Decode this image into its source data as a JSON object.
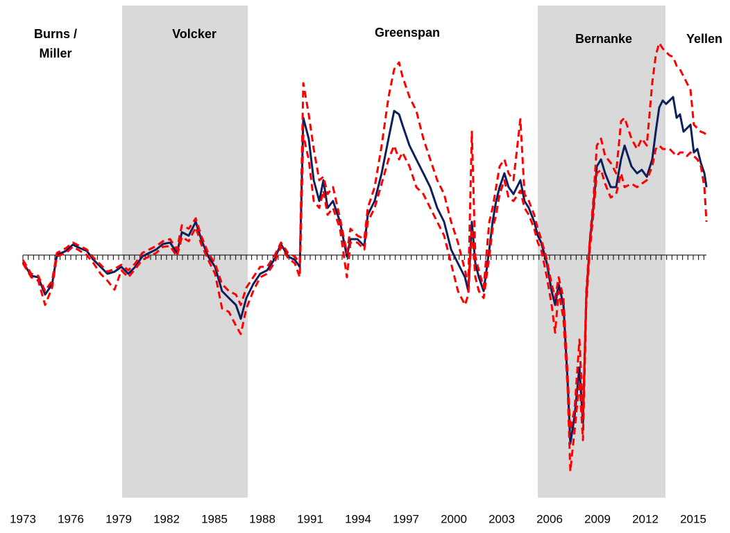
{
  "chart_data": {
    "type": "line",
    "annotations": [
      {
        "lines": [
          "Burns /",
          "Miller"
        ]
      },
      {
        "lines": [
          "Volcker"
        ]
      },
      {
        "lines": [
          "Greenspan"
        ]
      },
      {
        "lines": [
          "Bernanke"
        ]
      },
      {
        "lines": [
          "Yellen"
        ]
      }
    ],
    "shaded": [
      {
        "start": 1979.22,
        "end": 1987.09,
        "color": "#d9d9d9"
      },
      {
        "start": 2005.26,
        "end": 2013.26,
        "color": "#d9d9d9"
      }
    ],
    "xlim": [
      1972.0,
      2017.0
    ],
    "xticks": [
      1973,
      1976,
      1979,
      1982,
      1985,
      1988,
      1991,
      1994,
      1997,
      2000,
      2003,
      2006,
      2009,
      2012,
      2015
    ],
    "ylim": [
      -3.5,
      3.6
    ],
    "x": [
      1973.0,
      1973.52,
      1973.96,
      1974.39,
      1974.83,
      1975.13,
      1975.7,
      1976.13,
      1976.57,
      1977.0,
      1977.43,
      1977.87,
      1978.3,
      1978.74,
      1979.17,
      1979.61,
      1980.04,
      1980.48,
      1980.91,
      1981.35,
      1981.78,
      1982.22,
      1982.65,
      1982.96,
      1983.39,
      1983.83,
      1984.17,
      1984.61,
      1985.04,
      1985.48,
      1985.91,
      1986.35,
      1986.65,
      1987.0,
      1987.43,
      1987.87,
      1988.3,
      1988.74,
      1989.17,
      1989.61,
      1990.04,
      1990.35,
      1990.57,
      1990.91,
      1991.22,
      1991.57,
      1991.83,
      1992.09,
      1992.43,
      1992.87,
      1993.3,
      1993.52,
      1993.96,
      1994.39,
      1994.61,
      1995.04,
      1995.48,
      1995.91,
      1996.26,
      1996.57,
      1996.78,
      1997.22,
      1997.65,
      1998.09,
      1998.52,
      1998.96,
      1999.39,
      1999.83,
      2000.26,
      2000.7,
      2000.91,
      2001.13,
      2001.35,
      2001.57,
      2001.87,
      2002.22,
      2002.43,
      2002.65,
      2002.87,
      2003.17,
      2003.43,
      2003.74,
      2004.17,
      2004.43,
      2004.7,
      2005.04,
      2005.26,
      2005.48,
      2005.83,
      2006.13,
      2006.35,
      2006.57,
      2006.87,
      2007.13,
      2007.3,
      2007.57,
      2007.87,
      2008.09,
      2008.3,
      2008.52,
      2008.74,
      2008.96,
      2009.22,
      2009.48,
      2009.83,
      2010.17,
      2010.48,
      2010.7,
      2011.13,
      2011.48,
      2011.78,
      2012.09,
      2012.43,
      2012.65,
      2012.87,
      2013.09,
      2013.3,
      2013.52,
      2013.74,
      2013.96,
      2014.17,
      2014.39,
      2014.61,
      2014.83,
      2015.04,
      2015.26,
      2015.48,
      2015.7,
      2015.83
    ],
    "series": [
      {
        "color": "#0d1f5c",
        "style": "solid",
        "values": [
          -0.1,
          -0.3,
          -0.32,
          -0.57,
          -0.42,
          0,
          0.06,
          0.15,
          0.1,
          0.06,
          -0.07,
          -0.17,
          -0.27,
          -0.24,
          -0.17,
          -0.27,
          -0.17,
          -0.02,
          0.03,
          0.08,
          0.16,
          0.18,
          0.03,
          0.33,
          0.28,
          0.48,
          0.23,
          -0.02,
          -0.17,
          -0.52,
          -0.62,
          -0.72,
          -0.92,
          -0.62,
          -0.42,
          -0.27,
          -0.22,
          -0.07,
          0.16,
          -0.02,
          -0.07,
          -0.17,
          1.98,
          1.68,
          1.08,
          0.78,
          1.08,
          0.68,
          0.78,
          0.48,
          -0.02,
          0.23,
          0.23,
          0.13,
          0.58,
          0.78,
          1.18,
          1.68,
          2.08,
          2.03,
          1.88,
          1.58,
          1.38,
          1.18,
          0.98,
          0.68,
          0.48,
          0.08,
          -0.12,
          -0.32,
          -0.52,
          0.48,
          -0.12,
          -0.32,
          -0.52,
          0.08,
          0.48,
          0.78,
          0.98,
          1.18,
          0.98,
          0.88,
          1.08,
          0.78,
          0.68,
          0.48,
          0.28,
          0.18,
          -0.12,
          -0.52,
          -0.72,
          -0.42,
          -0.72,
          -1.82,
          -2.72,
          -2.32,
          -1.62,
          -2.42,
          -0.62,
          0.18,
          0.68,
          1.28,
          1.38,
          1.18,
          0.98,
          0.98,
          1.38,
          1.58,
          1.28,
          1.18,
          1.23,
          1.13,
          1.38,
          1.78,
          2.13,
          2.23,
          2.18,
          2.23,
          2.28,
          1.98,
          2.03,
          1.78,
          1.83,
          1.88,
          1.48,
          1.53,
          1.33,
          1.18,
          0.98
        ]
      },
      {
        "color": "#ff0000",
        "style": "dashed",
        "values": [
          -0.07,
          -0.27,
          -0.3,
          -0.52,
          -0.37,
          0.03,
          0.1,
          0.18,
          0.13,
          0.08,
          -0.04,
          -0.14,
          -0.24,
          -0.2,
          -0.14,
          -0.22,
          -0.12,
          0.03,
          0.08,
          0.13,
          0.2,
          0.23,
          0.08,
          0.43,
          0.38,
          0.53,
          0.28,
          0.03,
          -0.12,
          -0.42,
          -0.52,
          -0.57,
          -0.72,
          -0.47,
          -0.32,
          -0.17,
          -0.17,
          -0.02,
          0.18,
          0.03,
          -0.02,
          -0.12,
          2.48,
          2.03,
          1.53,
          1.08,
          1.13,
          0.88,
          0.98,
          0.53,
          0.03,
          0.38,
          0.28,
          0.23,
          0.68,
          0.98,
          1.58,
          2.28,
          2.68,
          2.78,
          2.58,
          2.28,
          2.08,
          1.68,
          1.38,
          1.08,
          0.88,
          0.48,
          0.18,
          -0.22,
          -0.42,
          1.78,
          -0.02,
          -0.22,
          -0.47,
          0.48,
          0.68,
          0.98,
          1.28,
          1.38,
          1.18,
          1.08,
          1.96,
          0.88,
          0.78,
          0.58,
          0.38,
          0.23,
          -0.07,
          -0.42,
          -0.62,
          -0.32,
          -0.62,
          -1.72,
          -2.52,
          -2.22,
          -1.22,
          -2.32,
          -0.52,
          0.23,
          0.78,
          1.58,
          1.68,
          1.43,
          1.33,
          1.18,
          1.93,
          1.98,
          1.68,
          1.53,
          1.68,
          1.58,
          2.48,
          2.88,
          3.06,
          2.98,
          2.93,
          2.88,
          2.86,
          2.73,
          2.68,
          2.58,
          2.48,
          2.38,
          1.88,
          1.83,
          1.78,
          1.76,
          1.73
        ]
      },
      {
        "color": "#ff0000",
        "style": "dashed",
        "values": [
          -0.12,
          -0.32,
          -0.37,
          -0.72,
          -0.47,
          -0.02,
          0.03,
          0.12,
          0.06,
          0,
          -0.12,
          -0.27,
          -0.37,
          -0.5,
          -0.22,
          -0.32,
          -0.2,
          -0.07,
          -0.02,
          0.03,
          0.12,
          0.13,
          -0.02,
          0.26,
          0.2,
          0.4,
          0.16,
          -0.07,
          -0.27,
          -0.77,
          -0.82,
          -1.02,
          -1.14,
          -0.77,
          -0.52,
          -0.32,
          -0.27,
          -0.12,
          0.12,
          -0.04,
          -0.12,
          -0.32,
          1.73,
          1.38,
          0.78,
          0.68,
          0.93,
          0.58,
          0.68,
          0.38,
          -0.32,
          0.18,
          0.18,
          0.08,
          0.48,
          0.68,
          1.03,
          1.38,
          1.58,
          1.38,
          1.48,
          1.28,
          0.98,
          0.88,
          0.68,
          0.48,
          0.28,
          -0.12,
          -0.52,
          -0.72,
          -0.57,
          0.38,
          -0.32,
          -0.52,
          -0.62,
          -0.02,
          0.38,
          0.58,
          0.88,
          1.08,
          0.83,
          0.78,
          0.93,
          0.68,
          0.58,
          0.38,
          0.18,
          0.08,
          -0.32,
          -0.72,
          -1.12,
          -0.52,
          -0.92,
          -1.92,
          -3.12,
          -2.52,
          -1.82,
          -2.67,
          -0.72,
          0.08,
          0.58,
          1.18,
          1.23,
          1.03,
          0.83,
          0.88,
          1.18,
          0.98,
          1.03,
          0.98,
          1.03,
          1.08,
          1.28,
          1.53,
          1.58,
          1.53,
          1.53,
          1.53,
          1.48,
          1.43,
          1.48,
          1.48,
          1.43,
          1.48,
          1.43,
          1.38,
          1.28,
          0.98,
          0.48
        ]
      }
    ]
  }
}
